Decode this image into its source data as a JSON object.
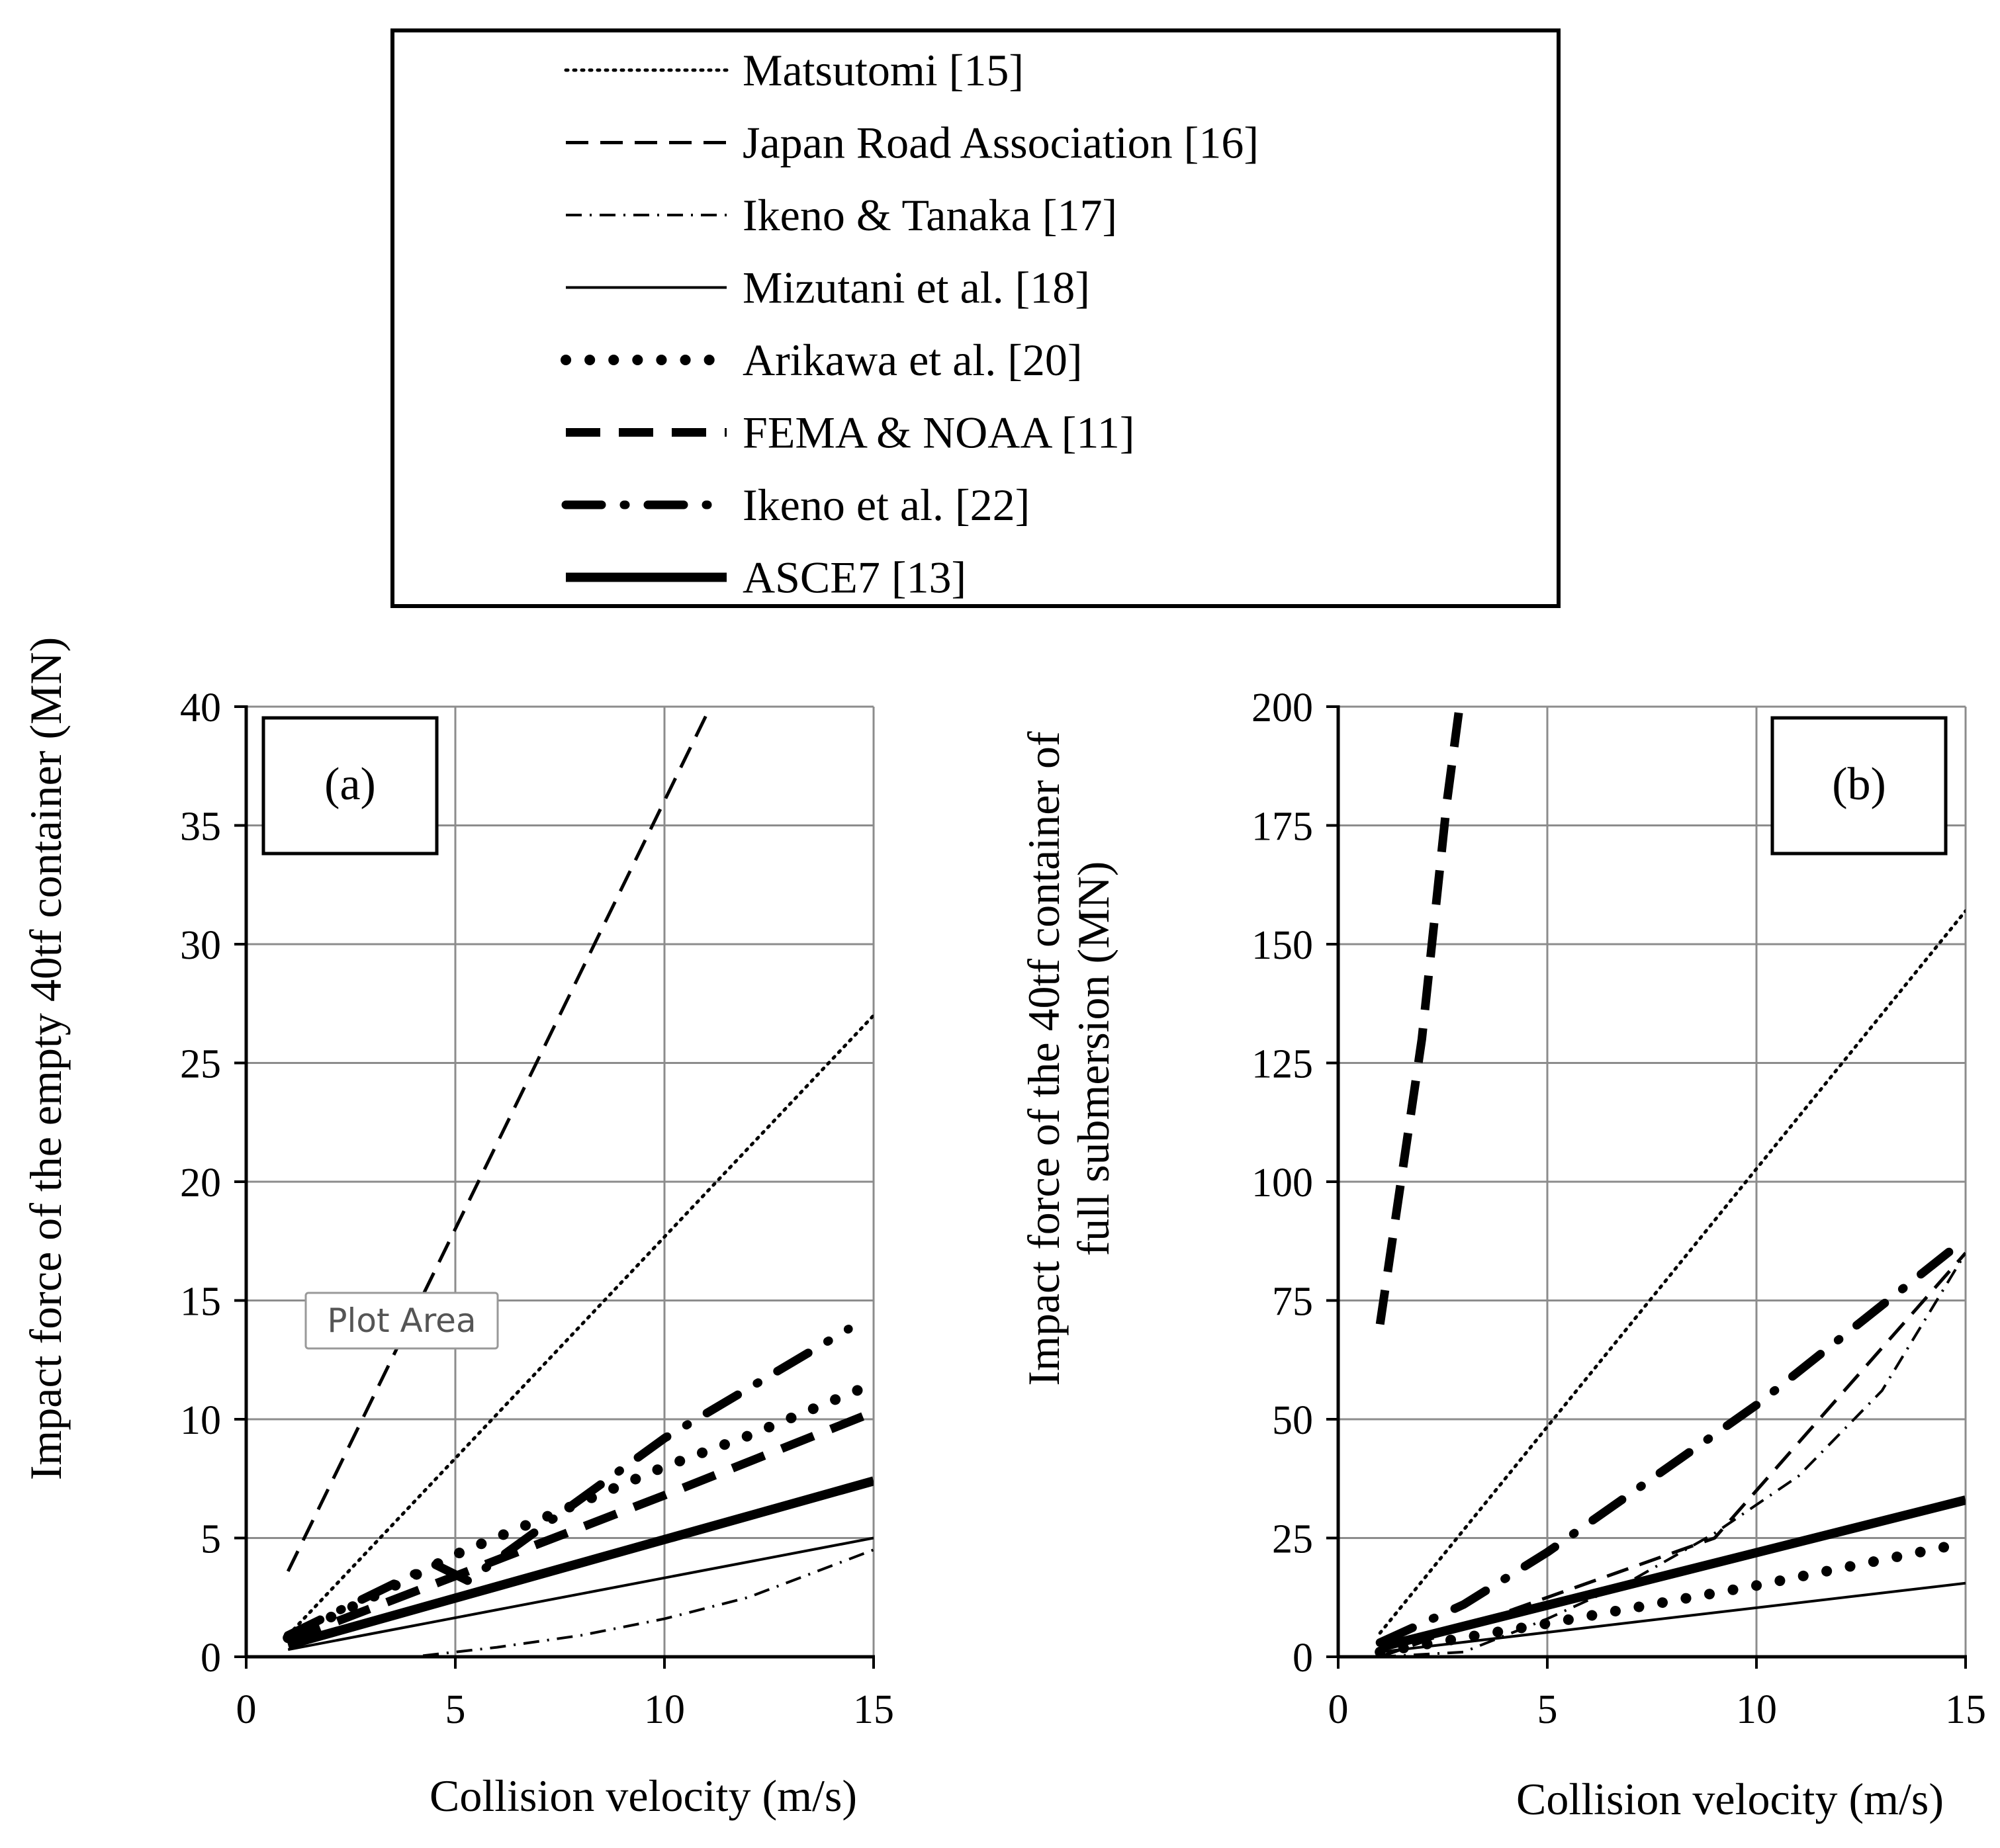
{
  "legend": {
    "items": [
      {
        "key": "matsutomi",
        "label": "Matsutomi [15]"
      },
      {
        "key": "japan_road",
        "label": "Japan Road Association [16]"
      },
      {
        "key": "ikeno_tanaka",
        "label": "Ikeno & Tanaka [17]"
      },
      {
        "key": "mizutani",
        "label": "Mizutani et al. [18]"
      },
      {
        "key": "arikawa",
        "label": "Arikawa et al. [20]"
      },
      {
        "key": "fema",
        "label": "FEMA & NOAA [11]"
      },
      {
        "key": "ikeno_etal",
        "label": "Ikeno et al. [22]"
      },
      {
        "key": "asce7",
        "label": "ASCE7 [13]"
      }
    ]
  },
  "tooltip": {
    "label": "Plot Area"
  },
  "chart_data": [
    {
      "type": "line",
      "panel_label": "(a)",
      "xlabel": "Collision velocity (m/s)",
      "ylabel": "Impact force of the empty 40tf container (MN)",
      "xlim": [
        0,
        15
      ],
      "ylim": [
        0,
        40
      ],
      "x_ticks": [
        0,
        5,
        10,
        15
      ],
      "y_ticks": [
        0,
        5,
        10,
        15,
        20,
        25,
        30,
        35,
        40
      ],
      "grid": true,
      "series": [
        {
          "name": "Matsutomi [15]",
          "key": "matsutomi",
          "x": [
            1,
            15
          ],
          "y": [
            0.9,
            27
          ]
        },
        {
          "name": "Japan Road Association [16]",
          "key": "japan_road",
          "x": [
            1,
            11.1
          ],
          "y": [
            3.6,
            40
          ]
        },
        {
          "name": "Ikeno & Tanaka [17]",
          "key": "ikeno_tanaka",
          "x": [
            1,
            4,
            6,
            8,
            10,
            12,
            15
          ],
          "y": [
            0,
            0,
            0.4,
            0.9,
            1.6,
            2.5,
            4.5
          ]
        },
        {
          "name": "Mizutani et al. [18]",
          "key": "mizutani",
          "x": [
            1,
            15
          ],
          "y": [
            0.3,
            5.0
          ]
        },
        {
          "name": "Arikawa et al. [20]",
          "key": "arikawa",
          "x": [
            1,
            3,
            5,
            8,
            10,
            12,
            15
          ],
          "y": [
            0.8,
            2.5,
            4.3,
            6.5,
            8.0,
            9.3,
            11.5
          ]
        },
        {
          "name": "FEMA & NOAA [11]",
          "key": "fema",
          "x": [
            1,
            5,
            10,
            15
          ],
          "y": [
            0.7,
            3.4,
            6.8,
            10.3
          ]
        },
        {
          "name": "Ikeno et al. [22]",
          "key": "ikeno_etal",
          "x": [
            1,
            4.5,
            5.3,
            10,
            14.4
          ],
          "y": [
            0.9,
            3.9,
            3.2,
            9.2,
            13.8
          ]
        },
        {
          "name": "ASCE7 [13]",
          "key": "asce7",
          "x": [
            1,
            15
          ],
          "y": [
            0.5,
            7.4
          ]
        }
      ]
    },
    {
      "type": "line",
      "panel_label": "(b)",
      "xlabel": "Collision velocity (m/s)",
      "ylabel_lines": [
        "Impact force of the 40tf container of",
        "full submersion (MN)"
      ],
      "xlim": [
        0,
        15
      ],
      "ylim": [
        0,
        200
      ],
      "x_ticks": [
        0,
        5,
        10,
        15
      ],
      "y_ticks": [
        0,
        25,
        50,
        75,
        100,
        125,
        150,
        175,
        200
      ],
      "grid": true,
      "series": [
        {
          "name": "Matsutomi [15]",
          "key": "matsutomi",
          "x": [
            1,
            15
          ],
          "y": [
            5,
            157
          ]
        },
        {
          "name": "Japan Road Association [16]",
          "key": "japan_road",
          "x": [
            1,
            9,
            15
          ],
          "y": [
            0,
            25,
            85
          ]
        },
        {
          "name": "Ikeno & Tanaka [17]",
          "key": "ikeno_tanaka",
          "x": [
            1,
            3,
            5,
            7,
            9,
            11,
            13,
            15
          ],
          "y": [
            0,
            1,
            8,
            16,
            26,
            38,
            56,
            85
          ]
        },
        {
          "name": "Mizutani et al. [18]",
          "key": "mizutani",
          "x": [
            1,
            15
          ],
          "y": [
            1,
            15.5
          ]
        },
        {
          "name": "Arikawa et al. [20]",
          "key": "arikawa",
          "x": [
            1,
            5,
            10,
            15
          ],
          "y": [
            1,
            7,
            15,
            24
          ]
        },
        {
          "name": "FEMA & NOAA [11]",
          "key": "fema",
          "x": [
            1,
            2,
            2.6,
            2.9
          ],
          "y": [
            70,
            130,
            180,
            200
          ]
        },
        {
          "name": "Ikeno et al. [22]",
          "key": "ikeno_etal",
          "x": [
            1,
            3,
            5,
            10,
            15
          ],
          "y": [
            3,
            11,
            22,
            53,
            88
          ]
        },
        {
          "name": "ASCE7 [13]",
          "key": "asce7",
          "x": [
            1,
            15
          ],
          "y": [
            2,
            33
          ]
        }
      ]
    }
  ]
}
